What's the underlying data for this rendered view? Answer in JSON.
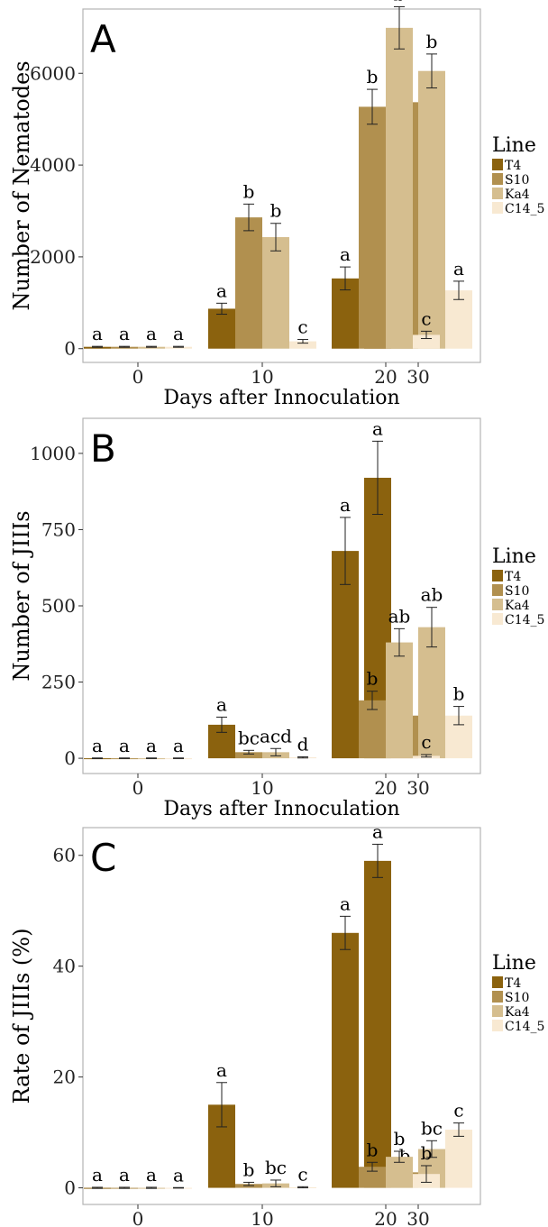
{
  "legend": {
    "title": "Line",
    "series_colors": [
      "#8B620E",
      "#B1904F",
      "#D5BE8F",
      "#F8E9D2"
    ]
  },
  "chart_data": [
    {
      "type": "bar",
      "panel_label": "A",
      "xlabel": "Days after Innoculation",
      "ylabel": "Number of Nematodes",
      "categories": [
        "0",
        "10",
        "20",
        "30"
      ],
      "ylim": [
        -300,
        7400
      ],
      "yticks": [
        0,
        2000,
        4000,
        6000
      ],
      "legend_position": "right",
      "grid": false,
      "series": [
        {
          "name": "T4",
          "values": [
            40,
            870,
            1530,
            1530
          ],
          "errors": [
            10,
            120,
            250,
            160
          ],
          "letters": [
            "a",
            "a",
            "a",
            "a"
          ]
        },
        {
          "name": "S10",
          "values": [
            40,
            2860,
            5270,
            5370
          ],
          "errors": [
            10,
            290,
            380,
            250
          ],
          "letters": [
            "a",
            "b",
            "b",
            "b"
          ]
        },
        {
          "name": "Ka4",
          "values": [
            40,
            2430,
            6990,
            6050
          ],
          "errors": [
            10,
            300,
            460,
            370
          ],
          "letters": [
            "a",
            "b",
            "b",
            "b"
          ]
        },
        {
          "name": "C14_5",
          "values": [
            40,
            160,
            300,
            1270
          ],
          "errors": [
            10,
            40,
            80,
            200
          ],
          "letters": [
            "a",
            "c",
            "c",
            "a"
          ]
        }
      ]
    },
    {
      "type": "bar",
      "panel_label": "B",
      "xlabel": "Days after Innoculation",
      "ylabel": "Number of JIIIs",
      "categories": [
        "0",
        "10",
        "20",
        "30"
      ],
      "ylim": [
        -50,
        1115
      ],
      "yticks": [
        0,
        250,
        500,
        750,
        1000
      ],
      "legend_position": "right",
      "grid": false,
      "series": [
        {
          "name": "T4",
          "values": [
            0,
            110,
            680,
            920
          ],
          "errors": [
            1,
            25,
            110,
            120
          ],
          "letters": [
            "a",
            "a",
            "a",
            "a"
          ]
        },
        {
          "name": "S10",
          "values": [
            0,
            20,
            190,
            140
          ],
          "errors": [
            1,
            6,
            30,
            25
          ],
          "letters": [
            "a",
            "bc",
            "b",
            "b"
          ]
        },
        {
          "name": "Ka4",
          "values": [
            0,
            20,
            380,
            430
          ],
          "errors": [
            1,
            12,
            45,
            65
          ],
          "letters": [
            "a",
            "acd",
            "ab",
            "ab"
          ]
        },
        {
          "name": "C14_5",
          "values": [
            0,
            3,
            8,
            140
          ],
          "errors": [
            1,
            2,
            4,
            30
          ],
          "letters": [
            "a",
            "d",
            "c",
            "b"
          ]
        }
      ]
    },
    {
      "type": "bar",
      "panel_label": "C",
      "xlabel": "Days after Innoculation",
      "ylabel": "Rate of JIIIs (%)",
      "categories": [
        "0",
        "10",
        "20",
        "30"
      ],
      "ylim": [
        -3,
        65
      ],
      "yticks": [
        0,
        20,
        40,
        60
      ],
      "legend_position": "right",
      "grid": false,
      "series": [
        {
          "name": "T4",
          "values": [
            0,
            15,
            46,
            59
          ],
          "errors": [
            0.1,
            4,
            3,
            3
          ],
          "letters": [
            "a",
            "a",
            "a",
            "a"
          ]
        },
        {
          "name": "S10",
          "values": [
            0,
            0.7,
            3.8,
            2.8
          ],
          "errors": [
            0.1,
            0.3,
            0.8,
            0.7
          ],
          "letters": [
            "a",
            "b",
            "b",
            "b"
          ]
        },
        {
          "name": "Ka4",
          "values": [
            0,
            0.8,
            5.6,
            7.0
          ],
          "errors": [
            0.1,
            0.6,
            1.0,
            1.5
          ],
          "letters": [
            "a",
            "bc",
            "b",
            "bc"
          ]
        },
        {
          "name": "C14_5",
          "values": [
            0,
            0.1,
            2.5,
            10.5
          ],
          "errors": [
            0.05,
            0.1,
            1.5,
            1.2
          ],
          "letters": [
            "a",
            "c",
            "b",
            "c"
          ]
        }
      ]
    }
  ]
}
